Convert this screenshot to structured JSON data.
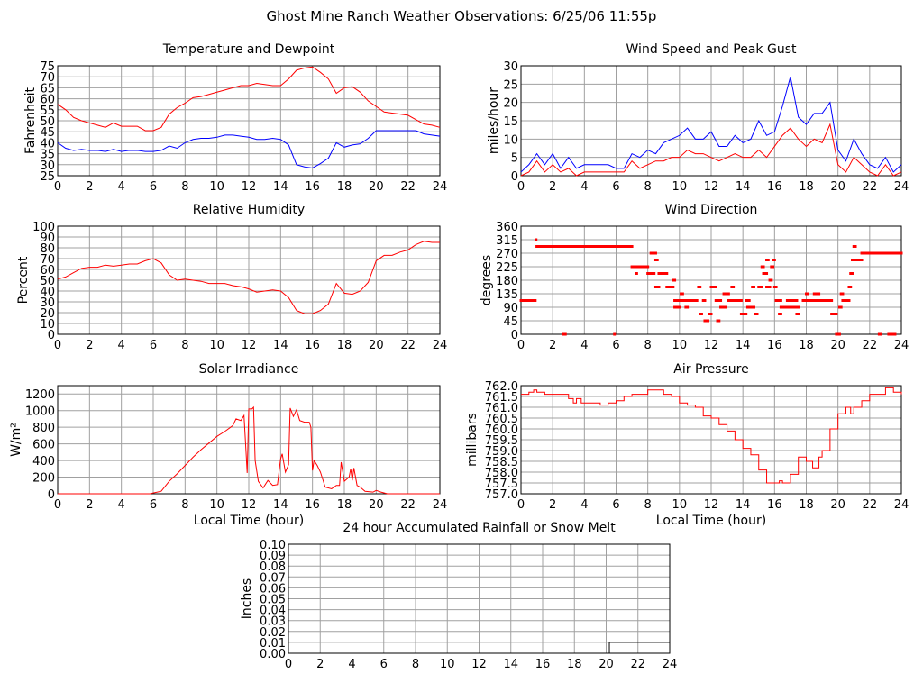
{
  "title": "Ghost Mine Ranch Weather Observations: 6/25/06 11:55p",
  "colors": {
    "primary": "#ff0000",
    "secondary": "#0000ff",
    "rain": "#000000",
    "grid": "#a0a0a0"
  },
  "chart_data": [
    {
      "id": "temperature",
      "type": "line",
      "title": "Temperature and Dewpoint",
      "xlabel": "",
      "ylabel": "Fahrenheit",
      "xlim": [
        0,
        24
      ],
      "ylim": [
        25,
        75
      ],
      "xticks": [
        "0",
        "2",
        "4",
        "6",
        "8",
        "10",
        "12",
        "14",
        "16",
        "18",
        "20",
        "22",
        "24"
      ],
      "yticks": [
        "25",
        "30",
        "35",
        "40",
        "45",
        "50",
        "55",
        "60",
        "65",
        "70",
        "75"
      ],
      "grid": true,
      "x": [
        0,
        0.5,
        1,
        1.5,
        2,
        2.5,
        3,
        3.5,
        4,
        4.5,
        5,
        5.5,
        6,
        6.5,
        7,
        7.5,
        8,
        8.5,
        9,
        9.5,
        10,
        10.5,
        11,
        11.5,
        12,
        12.5,
        13,
        13.5,
        14,
        14.5,
        15,
        15.5,
        16,
        16.5,
        17,
        17.5,
        18,
        18.5,
        19,
        19.5,
        20,
        20.5,
        21,
        21.5,
        22,
        22.5,
        23,
        23.5,
        24
      ],
      "series": [
        {
          "color": "#ff0000",
          "values": [
            57.5,
            55,
            51.5,
            50,
            49,
            48,
            47,
            49,
            47.5,
            47.5,
            47.5,
            45.5,
            45.5,
            47,
            53,
            56,
            58,
            60.5,
            61,
            62,
            63,
            64,
            65,
            66,
            66,
            67,
            66.5,
            66,
            66,
            69,
            73,
            74,
            74.5,
            72,
            69,
            62.5,
            65,
            65.5,
            63,
            59,
            56.5,
            54,
            53.5,
            53,
            52.5,
            50.5,
            48.5,
            48,
            47
          ]
        },
        {
          "color": "#0000ff",
          "values": [
            40,
            37.5,
            36.5,
            37,
            36.5,
            36.5,
            36,
            37,
            36,
            36.5,
            36.5,
            36,
            36,
            36.5,
            38.5,
            37.5,
            40,
            41.5,
            42,
            42,
            42.5,
            43.5,
            43.5,
            43,
            42.5,
            41.5,
            41.5,
            42,
            41.5,
            39,
            30,
            29,
            28.5,
            30.5,
            33,
            40,
            38,
            39,
            39.5,
            42,
            45.5,
            45.5,
            45.5,
            45.5,
            45.5,
            45.5,
            44,
            43.5,
            43
          ]
        }
      ]
    },
    {
      "id": "wind-speed",
      "type": "line",
      "title": "Wind Speed and Peak Gust",
      "xlabel": "",
      "ylabel": "miles/hour",
      "xlim": [
        0,
        24
      ],
      "ylim": [
        0,
        30
      ],
      "xticks": [
        "0",
        "2",
        "4",
        "6",
        "8",
        "10",
        "12",
        "14",
        "16",
        "18",
        "20",
        "22",
        "24"
      ],
      "yticks": [
        "0",
        "5",
        "10",
        "15",
        "20",
        "25",
        "30"
      ],
      "grid": true,
      "x": [
        0,
        0.5,
        1,
        1.5,
        2,
        2.5,
        3,
        3.5,
        4,
        4.5,
        5,
        5.5,
        6,
        6.5,
        7,
        7.5,
        8,
        8.5,
        9,
        9.5,
        10,
        10.5,
        11,
        11.5,
        12,
        12.5,
        13,
        13.5,
        14,
        14.5,
        15,
        15.5,
        16,
        16.5,
        17,
        17.5,
        18,
        18.5,
        19,
        19.5,
        20,
        20.5,
        21,
        21.5,
        22,
        22.5,
        23,
        23.5,
        24
      ],
      "series": [
        {
          "color": "#0000ff",
          "values": [
            1,
            3,
            6,
            3,
            6,
            2,
            5,
            2,
            3,
            3,
            3,
            3,
            2,
            2,
            6,
            5,
            7,
            6,
            9,
            10,
            11,
            13,
            10,
            10,
            12,
            8,
            8,
            11,
            9,
            10,
            15,
            11,
            12,
            19,
            27,
            16,
            14,
            17,
            17,
            20,
            7,
            4,
            10,
            6,
            3,
            2,
            5,
            1,
            3
          ]
        },
        {
          "color": "#ff0000",
          "values": [
            0,
            1,
            4,
            1,
            3,
            1,
            2,
            0,
            1,
            1,
            1,
            1,
            1,
            1,
            4,
            2,
            3,
            4,
            4,
            5,
            5,
            7,
            6,
            6,
            5,
            4,
            5,
            6,
            5,
            5,
            7,
            5,
            8,
            11,
            13,
            10,
            8,
            10,
            9,
            14,
            3,
            1,
            5,
            3,
            1,
            0,
            3,
            0,
            1
          ]
        }
      ]
    },
    {
      "id": "humidity",
      "type": "line",
      "title": "Relative Humidity",
      "xlabel": "",
      "ylabel": "Percent",
      "xlim": [
        0,
        24
      ],
      "ylim": [
        0,
        100
      ],
      "xticks": [
        "0",
        "2",
        "4",
        "6",
        "8",
        "10",
        "12",
        "14",
        "16",
        "18",
        "20",
        "22",
        "24"
      ],
      "yticks": [
        "0",
        "10",
        "20",
        "30",
        "40",
        "50",
        "60",
        "70",
        "80",
        "90",
        "100"
      ],
      "grid": true,
      "x": [
        0,
        0.5,
        1,
        1.5,
        2,
        2.5,
        3,
        3.5,
        4,
        4.5,
        5,
        5.5,
        6,
        6.5,
        7,
        7.5,
        8,
        8.5,
        9,
        9.5,
        10,
        10.5,
        11,
        11.5,
        12,
        12.5,
        13,
        13.5,
        14,
        14.5,
        15,
        15.5,
        16,
        16.5,
        17,
        17.5,
        18,
        18.5,
        19,
        19.5,
        20,
        20.5,
        21,
        21.5,
        22,
        22.5,
        23,
        23.5,
        24
      ],
      "series": [
        {
          "color": "#ff0000",
          "values": [
            51,
            53,
            57,
            61,
            62,
            62,
            64,
            63,
            64,
            65,
            65,
            68,
            70,
            66,
            55,
            50,
            51,
            50,
            49,
            47,
            47,
            47,
            45,
            44,
            42,
            39,
            40,
            41,
            40,
            34,
            22,
            19,
            19,
            22,
            28,
            47,
            38,
            37,
            40,
            48,
            68,
            73,
            73,
            76,
            78,
            83,
            86,
            85,
            85
          ]
        }
      ]
    },
    {
      "id": "wind-direction",
      "type": "scatter",
      "title": "Wind Direction",
      "xlabel": "",
      "ylabel": "degrees",
      "xlim": [
        0,
        24
      ],
      "ylim": [
        0,
        360
      ],
      "xticks": [
        "0",
        "2",
        "4",
        "6",
        "8",
        "10",
        "12",
        "14",
        "16",
        "18",
        "20",
        "22",
        "24"
      ],
      "yticks": [
        "0",
        "45",
        "90",
        "135",
        "180",
        "225",
        "270",
        "315",
        "360"
      ],
      "grid": true,
      "color": "#ff0000",
      "runs_hour_start_end_degrees": [
        [
          0,
          0.9,
          112.5
        ],
        [
          0.95,
          0.95,
          315
        ],
        [
          1,
          7,
          292.5
        ],
        [
          2.7,
          2.8,
          0
        ],
        [
          5.9,
          5.9,
          0
        ],
        [
          7,
          7.3,
          225
        ],
        [
          7.3,
          7.3,
          202.5
        ],
        [
          7.4,
          8,
          225
        ],
        [
          8,
          8.4,
          202.5
        ],
        [
          8.2,
          8.5,
          270
        ],
        [
          8.5,
          8.6,
          247.5
        ],
        [
          8.5,
          8.7,
          157.5
        ],
        [
          8.7,
          9.2,
          202.5
        ],
        [
          9.2,
          9.6,
          157.5
        ],
        [
          9.6,
          9.7,
          180
        ],
        [
          9.7,
          10,
          112.5
        ],
        [
          9.7,
          10,
          90
        ],
        [
          10.1,
          10.2,
          135
        ],
        [
          10.2,
          10.8,
          112.5
        ],
        [
          10.4,
          10.5,
          90
        ],
        [
          10.8,
          11.1,
          112.5
        ],
        [
          11.2,
          11.3,
          157.5
        ],
        [
          11.3,
          11.4,
          67.5
        ],
        [
          11.5,
          11.6,
          112.5
        ],
        [
          11.6,
          11.8,
          45
        ],
        [
          11.9,
          12,
          67.5
        ],
        [
          12,
          12.3,
          157.5
        ],
        [
          12.3,
          12.6,
          112.5
        ],
        [
          12.4,
          12.5,
          45
        ],
        [
          12.6,
          12.9,
          90
        ],
        [
          12.8,
          13.1,
          135
        ],
        [
          13.1,
          13.9,
          112.5
        ],
        [
          13.3,
          13.4,
          157.5
        ],
        [
          13.9,
          14.2,
          67.5
        ],
        [
          14.2,
          14.4,
          112.5
        ],
        [
          14.3,
          14.7,
          90
        ],
        [
          14.6,
          14.7,
          157.5
        ],
        [
          14.8,
          14.9,
          67.5
        ],
        [
          15,
          15.2,
          157.5
        ],
        [
          15.2,
          15.3,
          225
        ],
        [
          15.3,
          15.5,
          202.5
        ],
        [
          15.5,
          15.6,
          247.5
        ],
        [
          15.5,
          15.7,
          157.5
        ],
        [
          15.7,
          15.8,
          180
        ],
        [
          15.8,
          15.9,
          225
        ],
        [
          15.9,
          16,
          247.5
        ],
        [
          16,
          16.1,
          157.5
        ],
        [
          16.1,
          16.4,
          112.5
        ],
        [
          16.3,
          16.4,
          67.5
        ],
        [
          16.4,
          17.5,
          90
        ],
        [
          16.8,
          17.4,
          112.5
        ],
        [
          17.4,
          17.5,
          67.5
        ],
        [
          17.8,
          19.6,
          112.5
        ],
        [
          18,
          18.1,
          135
        ],
        [
          18.5,
          18.8,
          135
        ],
        [
          19.6,
          19.9,
          67.5
        ],
        [
          19.9,
          20.1,
          0
        ],
        [
          20.1,
          20.2,
          90
        ],
        [
          20.2,
          20.3,
          135
        ],
        [
          20.3,
          20.7,
          112.5
        ],
        [
          20.7,
          20.8,
          157.5
        ],
        [
          20.8,
          20.9,
          202.5
        ],
        [
          20.9,
          21,
          247.5
        ],
        [
          21,
          21.1,
          292.5
        ],
        [
          21.1,
          21.5,
          247.5
        ],
        [
          21.5,
          23.4,
          270
        ],
        [
          22.6,
          22.7,
          0
        ],
        [
          23.2,
          23.6,
          0
        ],
        [
          23.5,
          24,
          270
        ]
      ]
    },
    {
      "id": "solar",
      "type": "line",
      "title": "Solar Irradiance",
      "xlabel": "Local Time (hour)",
      "ylabel": "W/m²",
      "xlim": [
        0,
        24
      ],
      "ylim": [
        0,
        1300
      ],
      "xticks": [
        "0",
        "2",
        "4",
        "6",
        "8",
        "10",
        "12",
        "14",
        "16",
        "18",
        "20",
        "22",
        "24"
      ],
      "yticks": [
        "0",
        "200",
        "400",
        "600",
        "800",
        "1000",
        "1200"
      ],
      "grid": true,
      "x": [
        0,
        5.8,
        6,
        6.5,
        7,
        7.5,
        8,
        8.5,
        9,
        9.5,
        10,
        10.5,
        11,
        11.2,
        11.5,
        11.7,
        11.8,
        11.9,
        12,
        12.2,
        12.3,
        12.4,
        12.6,
        12.9,
        13.2,
        13.5,
        13.8,
        14,
        14.1,
        14.3,
        14.5,
        14.6,
        14.8,
        15,
        15.2,
        15.5,
        15.8,
        15.9,
        16,
        16.1,
        16.3,
        16.5,
        16.8,
        17.2,
        17.5,
        17.7,
        17.8,
        18,
        18.3,
        18.4,
        18.5,
        18.6,
        18.8,
        19,
        19.3,
        19.8,
        20,
        20.3,
        20.7,
        24
      ],
      "series": [
        {
          "color": "#ff0000",
          "values": [
            0,
            0,
            10,
            30,
            150,
            240,
            340,
            440,
            530,
            610,
            690,
            750,
            820,
            900,
            880,
            940,
            600,
            250,
            1020,
            1020,
            1040,
            400,
            150,
            70,
            160,
            100,
            110,
            420,
            480,
            260,
            350,
            1030,
            930,
            1010,
            880,
            860,
            860,
            800,
            280,
            400,
            340,
            260,
            80,
            60,
            100,
            100,
            380,
            150,
            200,
            300,
            160,
            310,
            100,
            80,
            30,
            20,
            40,
            20,
            0,
            0
          ]
        }
      ]
    },
    {
      "id": "pressure",
      "type": "line",
      "step": true,
      "title": "Air Pressure",
      "xlabel": "Local Time (hour)",
      "ylabel": "millibars",
      "xlim": [
        0,
        24
      ],
      "ylim": [
        757,
        762
      ],
      "xticks": [
        "0",
        "2",
        "4",
        "6",
        "8",
        "10",
        "12",
        "14",
        "16",
        "18",
        "20",
        "22",
        "24"
      ],
      "yticks": [
        "757.0",
        "757.5",
        "758.0",
        "758.5",
        "759.0",
        "759.5",
        "760.0",
        "760.5",
        "761.0",
        "761.5",
        "762.0"
      ],
      "grid": true,
      "x": [
        0,
        0.5,
        0.8,
        1,
        1.5,
        2,
        2.5,
        3,
        3.3,
        3.5,
        3.8,
        4,
        4.5,
        5,
        5.5,
        6,
        6.5,
        7,
        7.5,
        8,
        8.5,
        9,
        9.5,
        10,
        10.5,
        11,
        11.5,
        12,
        12.5,
        13,
        13.5,
        14,
        14.5,
        15,
        15.5,
        16,
        16.3,
        16.5,
        17,
        17.5,
        18,
        18.4,
        18.8,
        19,
        19.5,
        20,
        20.5,
        20.8,
        21,
        21.5,
        22,
        22.5,
        23,
        23.5,
        24
      ],
      "series": [
        {
          "color": "#ff0000",
          "values": [
            761.6,
            761.7,
            761.8,
            761.7,
            761.6,
            761.6,
            761.6,
            761.4,
            761.2,
            761.4,
            761.2,
            761.2,
            761.2,
            761.1,
            761.2,
            761.3,
            761.5,
            761.6,
            761.6,
            761.8,
            761.8,
            761.6,
            761.5,
            761.2,
            761.1,
            761.0,
            760.6,
            760.5,
            760.2,
            759.9,
            759.5,
            759.1,
            758.8,
            758.1,
            757.5,
            757.5,
            757.6,
            757.5,
            757.9,
            758.7,
            758.5,
            758.2,
            758.7,
            759.0,
            760.0,
            760.7,
            761.0,
            760.7,
            761.0,
            761.3,
            761.6,
            761.6,
            761.9,
            761.7,
            761.6
          ]
        }
      ]
    },
    {
      "id": "rainfall",
      "type": "line",
      "step": true,
      "title": "24 hour Accumulated Rainfall or Snow Melt",
      "xlabel": "",
      "ylabel": "Inches",
      "xlim": [
        0,
        24
      ],
      "ylim": [
        0,
        0.1
      ],
      "xticks": [
        "0",
        "2",
        "4",
        "6",
        "8",
        "10",
        "12",
        "14",
        "16",
        "18",
        "20",
        "22",
        "24"
      ],
      "yticks": [
        "0.00",
        "0.01",
        "0.02",
        "0.03",
        "0.04",
        "0.05",
        "0.06",
        "0.07",
        "0.08",
        "0.09",
        "0.10"
      ],
      "grid": true,
      "x": [
        0,
        20.2,
        24
      ],
      "series": [
        {
          "color": "#000000",
          "values": [
            0,
            0.01,
            0.01
          ]
        }
      ]
    }
  ]
}
